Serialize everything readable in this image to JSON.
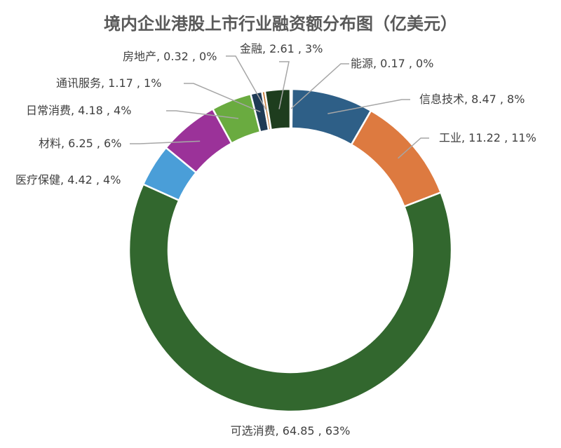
{
  "chart_data": {
    "type": "pie",
    "donut": true,
    "title": "境内企业港股上市行业融资额分布图（亿美元）",
    "legend": "none",
    "slices": [
      {
        "label": "能源",
        "value": 0.17,
        "percent": "0%",
        "text": "能源, 0.17 , 0%",
        "color": "#E7E6E6"
      },
      {
        "label": "信息技术",
        "value": 8.47,
        "percent": "8%",
        "text": "信息技术, 8.47 , 8%",
        "color": "#2E5F87"
      },
      {
        "label": "工业",
        "value": 11.22,
        "percent": "11%",
        "text": "工业, 11.22 , 11%",
        "color": "#DD7A40"
      },
      {
        "label": "可选消费",
        "value": 64.85,
        "percent": "63%",
        "text": "可选消费, 64.85 , 63%",
        "color": "#32672E"
      },
      {
        "label": "医疗保健",
        "value": 4.42,
        "percent": "4%",
        "text": "医疗保健, 4.42 , 4%",
        "color": "#4A9ED8"
      },
      {
        "label": "材料",
        "value": 6.25,
        "percent": "6%",
        "text": "材料, 6.25 , 6%",
        "color": "#9B3299"
      },
      {
        "label": "日常消费",
        "value": 4.18,
        "percent": "4%",
        "text": "日常消费, 4.18 , 4%",
        "color": "#6AAB40"
      },
      {
        "label": "通讯服务",
        "value": 1.17,
        "percent": "1%",
        "text": "通讯服务, 1.17 , 1%",
        "color": "#1F3A55"
      },
      {
        "label": "房地产",
        "value": 0.32,
        "percent": "0%",
        "text": "房地产, 0.32 , 0%",
        "color": "#C77B3A"
      },
      {
        "label": "金融",
        "value": 2.61,
        "percent": "3%",
        "text": "金融, 2.61 , 3%",
        "color": "#1E3D1E"
      }
    ]
  }
}
